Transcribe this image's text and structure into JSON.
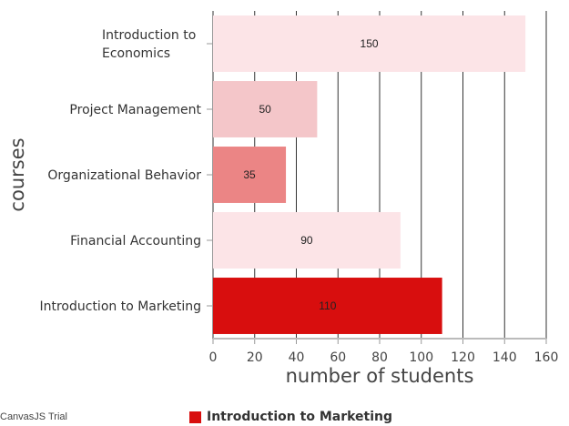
{
  "chart_data": {
    "type": "bar",
    "orientation": "horizontal",
    "categories": [
      "Introduction to Marketing",
      "Financial Accounting",
      "Organizational Behavior",
      "Project Management",
      "Introduction to Economics"
    ],
    "category_lines": [
      [
        "Introduction to Marketing"
      ],
      [
        "Financial Accounting"
      ],
      [
        "Organizational Behavior"
      ],
      [
        "Project Management"
      ],
      [
        "Introduction to",
        "Economics"
      ]
    ],
    "values": [
      110,
      90,
      35,
      50,
      150
    ],
    "colors": [
      "#D80E0E",
      "#FCE4E7",
      "#EB8585",
      "#F4C6C9",
      "#FCE4E7"
    ],
    "xlabel": "number of students",
    "ylabel": "courses",
    "xlim": [
      0,
      160
    ],
    "xticks": [
      0,
      20,
      40,
      60,
      80,
      100,
      120,
      140,
      160
    ],
    "grid": true,
    "legend": {
      "position": "bottom",
      "entries": [
        {
          "name": "Introduction to Marketing",
          "color": "#D80E0E"
        }
      ]
    }
  },
  "credit": "CanvasJS Trial"
}
